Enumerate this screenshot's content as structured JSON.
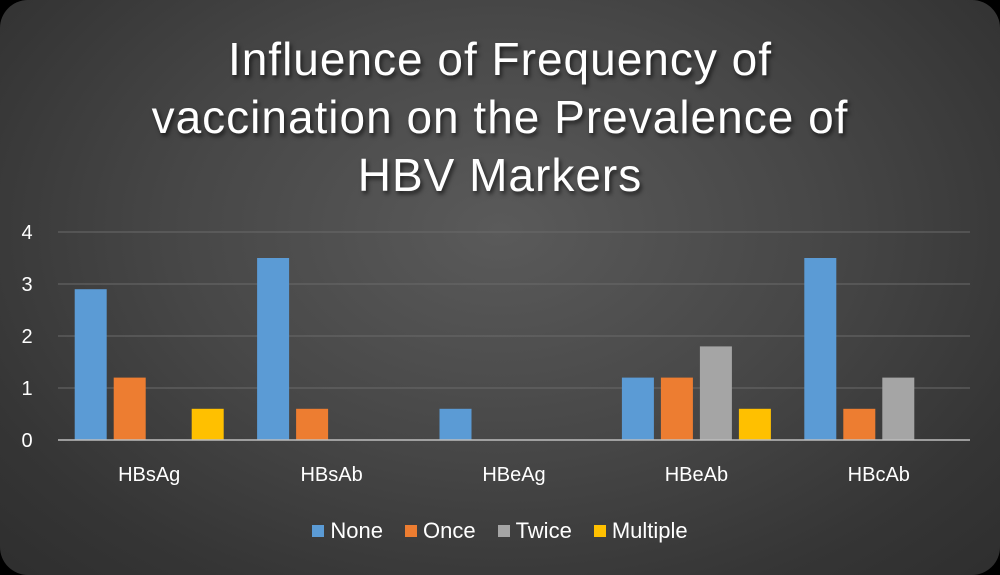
{
  "chart_data": {
    "type": "bar",
    "title_lines": [
      "Influence of Frequency of",
      "vaccination on the Prevalence of",
      "HBV Markers"
    ],
    "categories": [
      "HBsAg",
      "HBsAb",
      "HBeAg",
      "HBeAb",
      "HBcAb"
    ],
    "series": [
      {
        "name": "None",
        "color": "#5b9bd5",
        "values": [
          2.9,
          3.5,
          0.6,
          1.2,
          3.5
        ]
      },
      {
        "name": "Once",
        "color": "#ed7d31",
        "values": [
          1.2,
          0.6,
          0,
          1.2,
          0.6
        ]
      },
      {
        "name": "Twice",
        "color": "#a5a5a5",
        "values": [
          0,
          0,
          0,
          1.8,
          1.2
        ]
      },
      {
        "name": "Multiple",
        "color": "#ffc000",
        "values": [
          0.6,
          0,
          0,
          0.6,
          0
        ]
      }
    ],
    "yticks": [
      "0",
      "1",
      "2",
      "3",
      "4"
    ],
    "ylim": [
      0,
      4
    ],
    "grid": true,
    "legend_position": "bottom"
  }
}
